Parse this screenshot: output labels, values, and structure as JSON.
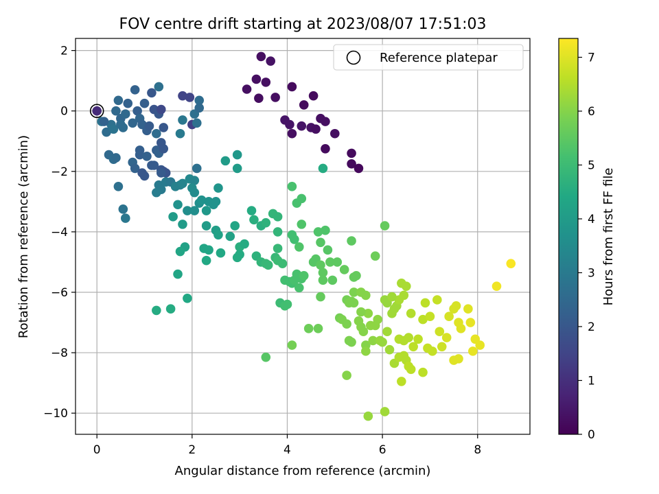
{
  "chart_data": {
    "type": "scatter",
    "title": "FOV centre drift starting at 2023/08/07 17:51:03",
    "xlabel": "Angular distance from reference (arcmin)",
    "ylabel": "Rotation from reference (arcmin)",
    "xlim": [
      -0.45,
      9.1
    ],
    "ylim": [
      -10.7,
      2.4
    ],
    "xticks": [
      0,
      2,
      4,
      6,
      8
    ],
    "yticks": [
      -10,
      -8,
      -6,
      -4,
      -2,
      0,
      2
    ],
    "xtick_labels": [
      "0",
      "2",
      "4",
      "6",
      "8"
    ],
    "ytick_labels": [
      "−10",
      "−8",
      "−6",
      "−4",
      "−2",
      "0",
      "2"
    ],
    "grid": true,
    "legend": {
      "placement": "top-right",
      "entries": [
        "Reference platepar"
      ]
    },
    "reference_point": {
      "x": 0,
      "y": 0
    },
    "colorbar": {
      "label": "Hours from first FF file",
      "colormap": "viridis",
      "range": [
        0,
        7.35
      ],
      "ticks": [
        0,
        1,
        2,
        3,
        4,
        5,
        6,
        7
      ],
      "tick_labels": [
        "0",
        "1",
        "2",
        "3",
        "4",
        "5",
        "6",
        "7"
      ]
    },
    "points": [
      [
        3.45,
        1.8,
        0.3
      ],
      [
        3.65,
        1.65,
        0.35
      ],
      [
        3.35,
        1.05,
        0.3
      ],
      [
        3.55,
        0.95,
        0.3
      ],
      [
        3.15,
        0.72,
        0.3
      ],
      [
        3.4,
        0.42,
        0.25
      ],
      [
        3.75,
        0.45,
        0.3
      ],
      [
        4.1,
        0.8,
        0.2
      ],
      [
        4.55,
        0.5,
        0.2
      ],
      [
        4.35,
        0.2,
        0.2
      ],
      [
        3.95,
        -0.3,
        0.4
      ],
      [
        4.05,
        -0.45,
        0.4
      ],
      [
        4.1,
        -0.75,
        0.3
      ],
      [
        4.3,
        -0.5,
        0.4
      ],
      [
        4.5,
        -0.55,
        0.35
      ],
      [
        4.6,
        -0.6,
        0.3
      ],
      [
        4.7,
        -0.25,
        0.3
      ],
      [
        4.8,
        -0.35,
        0.3
      ],
      [
        5.0,
        -0.75,
        0.3
      ],
      [
        4.8,
        -1.25,
        0.2
      ],
      [
        5.35,
        -1.4,
        0.2
      ],
      [
        5.35,
        -1.75,
        0.2
      ],
      [
        5.5,
        -1.9,
        0.15
      ],
      [
        0.0,
        0.0,
        0.9
      ],
      [
        0.1,
        -0.35,
        2.8
      ],
      [
        0.2,
        -0.7,
        2.6
      ],
      [
        0.3,
        -0.45,
        2.7
      ],
      [
        0.35,
        -0.6,
        2.8
      ],
      [
        0.4,
        0.0,
        2.5
      ],
      [
        0.45,
        0.35,
        2.5
      ],
      [
        0.5,
        -0.25,
        2.4
      ],
      [
        0.55,
        -0.55,
        2.6
      ],
      [
        0.6,
        -0.1,
        2.5
      ],
      [
        0.65,
        0.25,
        2.3
      ],
      [
        0.75,
        -0.4,
        2.4
      ],
      [
        0.8,
        0.7,
        2.3
      ],
      [
        0.85,
        0.0,
        2.2
      ],
      [
        0.9,
        -0.25,
        2.4
      ],
      [
        0.95,
        -0.45,
        2.3
      ],
      [
        1.0,
        0.25,
        2.2
      ],
      [
        1.05,
        -0.65,
        2.2
      ],
      [
        1.1,
        -0.5,
        2.1
      ],
      [
        1.15,
        0.6,
        2.0
      ],
      [
        1.2,
        0.05,
        1.9
      ],
      [
        1.3,
        0.8,
        2.7
      ],
      [
        1.25,
        -0.75,
        2.6
      ],
      [
        1.3,
        -0.1,
        2.0
      ],
      [
        1.35,
        0.05,
        1.6
      ],
      [
        1.4,
        -0.55,
        2.0
      ],
      [
        1.8,
        0.5,
        1.5
      ],
      [
        1.95,
        0.45,
        1.5
      ],
      [
        2.0,
        -0.45,
        1.4
      ],
      [
        2.05,
        -0.1,
        2.7
      ],
      [
        2.15,
        0.35,
        2.6
      ],
      [
        2.15,
        0.1,
        2.5
      ],
      [
        2.1,
        -0.4,
        2.7
      ],
      [
        1.8,
        -0.3,
        2.9
      ],
      [
        1.75,
        -0.75,
        3.0
      ],
      [
        0.25,
        -1.45,
        2.5
      ],
      [
        0.35,
        -1.6,
        2.6
      ],
      [
        0.4,
        -1.55,
        2.5
      ],
      [
        0.45,
        -2.5,
        2.7
      ],
      [
        0.55,
        -3.25,
        2.8
      ],
      [
        0.6,
        -3.55,
        2.9
      ],
      [
        0.75,
        -1.7,
        2.4
      ],
      [
        0.8,
        -1.9,
        2.3
      ],
      [
        0.9,
        -1.3,
        2.2
      ],
      [
        0.9,
        -1.45,
        2.2
      ],
      [
        0.95,
        -2.05,
        2.0
      ],
      [
        1.0,
        -2.15,
        2.0
      ],
      [
        1.05,
        -1.5,
        2.3
      ],
      [
        1.15,
        -1.8,
        2.1
      ],
      [
        1.2,
        -1.8,
        2.1
      ],
      [
        1.25,
        -1.3,
        2.2
      ],
      [
        1.3,
        -1.4,
        2.3
      ],
      [
        1.35,
        -1.95,
        2.0
      ],
      [
        1.4,
        -2.0,
        1.9
      ],
      [
        1.45,
        -2.05,
        1.9
      ],
      [
        1.35,
        -1.05,
        2.0
      ],
      [
        1.4,
        -1.25,
        2.0
      ],
      [
        0.15,
        -0.35,
        2.3
      ],
      [
        1.3,
        -2.45,
        3.0
      ],
      [
        1.35,
        -2.6,
        3.0
      ],
      [
        1.45,
        -2.35,
        3.0
      ],
      [
        1.25,
        -2.7,
        3.1
      ],
      [
        1.55,
        -2.35,
        2.9
      ],
      [
        1.65,
        -2.5,
        3.2
      ],
      [
        1.75,
        -2.45,
        3.2
      ],
      [
        1.8,
        -2.4,
        3.3
      ],
      [
        1.95,
        -2.25,
        3.4
      ],
      [
        2.05,
        -2.3,
        3.3
      ],
      [
        2.1,
        -1.9,
        2.7
      ],
      [
        2.05,
        -2.7,
        3.5
      ],
      [
        2.0,
        -2.55,
        3.5
      ],
      [
        1.7,
        -3.1,
        3.7
      ],
      [
        1.9,
        -3.3,
        3.6
      ],
      [
        2.05,
        -3.3,
        3.6
      ],
      [
        2.15,
        -3.05,
        3.6
      ],
      [
        2.2,
        -2.95,
        3.7
      ],
      [
        2.35,
        -3.0,
        3.7
      ],
      [
        2.45,
        -3.1,
        3.7
      ],
      [
        2.5,
        -3.0,
        3.7
      ],
      [
        2.55,
        -2.55,
        3.8
      ],
      [
        2.3,
        -3.8,
        4.0
      ],
      [
        2.5,
        -3.95,
        4.1
      ],
      [
        2.55,
        -4.1,
        4.2
      ],
      [
        2.8,
        -4.15,
        4.2
      ],
      [
        2.9,
        -3.8,
        4.3
      ],
      [
        2.95,
        -1.45,
        3.9
      ],
      [
        2.95,
        -1.9,
        4.0
      ],
      [
        2.7,
        -1.65,
        4.0
      ],
      [
        1.6,
        -3.5,
        4.0
      ],
      [
        1.8,
        -3.75,
        4.0
      ],
      [
        1.85,
        -4.5,
        4.2
      ],
      [
        1.75,
        -4.65,
        4.3
      ],
      [
        1.7,
        -5.4,
        4.3
      ],
      [
        1.9,
        -6.2,
        4.4
      ],
      [
        1.25,
        -6.6,
        4.5
      ],
      [
        1.55,
        -6.55,
        4.5
      ],
      [
        2.3,
        -4.95,
        4.4
      ],
      [
        2.25,
        -4.55,
        4.3
      ],
      [
        2.35,
        -4.6,
        4.3
      ],
      [
        2.6,
        -4.7,
        4.4
      ],
      [
        2.95,
        -4.85,
        4.5
      ],
      [
        3.0,
        -4.5,
        4.6
      ],
      [
        3.1,
        -4.4,
        4.5
      ],
      [
        3.25,
        -3.3,
        4.5
      ],
      [
        3.3,
        -3.6,
        4.6
      ],
      [
        3.45,
        -3.8,
        4.6
      ],
      [
        3.55,
        -3.7,
        4.7
      ],
      [
        3.7,
        -3.4,
        4.8
      ],
      [
        3.8,
        -3.5,
        4.8
      ],
      [
        3.8,
        -4.0,
        4.8
      ],
      [
        3.8,
        -4.55,
        4.9
      ],
      [
        3.35,
        -4.8,
        4.7
      ],
      [
        3.45,
        -5.0,
        4.8
      ],
      [
        3.55,
        -5.05,
        4.9
      ],
      [
        3.6,
        -5.1,
        4.9
      ],
      [
        3.75,
        -4.85,
        4.9
      ],
      [
        3.8,
        -4.95,
        5.0
      ],
      [
        3.9,
        -5.05,
        5.0
      ],
      [
        3.85,
        -6.35,
        5.0
      ],
      [
        3.95,
        -6.45,
        5.1
      ],
      [
        4.0,
        -6.4,
        5.1
      ],
      [
        3.95,
        -5.6,
        5.1
      ],
      [
        4.05,
        -5.65,
        5.1
      ],
      [
        4.1,
        -5.7,
        5.1
      ],
      [
        4.15,
        -5.6,
        5.2
      ],
      [
        4.2,
        -5.4,
        5.2
      ],
      [
        4.25,
        -5.85,
        5.2
      ],
      [
        4.3,
        -5.55,
        5.2
      ],
      [
        4.35,
        -5.45,
        5.3
      ],
      [
        4.1,
        -4.1,
        5.1
      ],
      [
        4.15,
        -4.25,
        5.1
      ],
      [
        4.2,
        -3.05,
        5.2
      ],
      [
        4.3,
        -2.9,
        5.2
      ],
      [
        4.1,
        -2.5,
        5.2
      ],
      [
        4.3,
        -3.75,
        5.3
      ],
      [
        4.25,
        -4.5,
        5.3
      ],
      [
        4.55,
        -5.0,
        5.4
      ],
      [
        4.6,
        -4.9,
        5.4
      ],
      [
        4.65,
        -4.0,
        5.3
      ],
      [
        4.7,
        -4.35,
        5.4
      ],
      [
        4.75,
        -1.9,
        4.5
      ],
      [
        4.8,
        -3.95,
        5.3
      ],
      [
        4.85,
        -4.6,
        5.4
      ],
      [
        4.7,
        -5.1,
        5.5
      ],
      [
        4.75,
        -5.35,
        5.5
      ],
      [
        4.9,
        -5.0,
        5.5
      ],
      [
        4.95,
        -5.6,
        5.5
      ],
      [
        5.05,
        -5.0,
        5.5
      ],
      [
        4.75,
        -5.6,
        5.5
      ],
      [
        4.7,
        -6.15,
        5.6
      ],
      [
        4.65,
        -7.2,
        5.7
      ],
      [
        4.45,
        -7.2,
        5.7
      ],
      [
        4.1,
        -7.75,
        5.8
      ],
      [
        3.55,
        -8.15,
        5.4
      ],
      [
        5.1,
        -6.85,
        5.8
      ],
      [
        5.15,
        -6.9,
        5.9
      ],
      [
        5.25,
        -6.25,
        5.8
      ],
      [
        5.3,
        -6.35,
        5.9
      ],
      [
        5.35,
        -4.3,
        5.5
      ],
      [
        5.35,
        -6.3,
        5.9
      ],
      [
        5.4,
        -5.5,
        5.6
      ],
      [
        5.45,
        -5.45,
        5.6
      ],
      [
        5.2,
        -5.25,
        5.6
      ],
      [
        5.25,
        -7.05,
        5.9
      ],
      [
        5.3,
        -7.6,
        5.9
      ],
      [
        5.35,
        -7.65,
        5.9
      ],
      [
        5.4,
        -6.0,
        5.9
      ],
      [
        5.5,
        -6.95,
        6.0
      ],
      [
        5.55,
        -6.0,
        6.0
      ],
      [
        5.55,
        -7.15,
        6.0
      ],
      [
        5.6,
        -7.3,
        6.0
      ],
      [
        5.65,
        -7.75,
        6.0
      ],
      [
        5.7,
        -6.7,
        6.1
      ],
      [
        5.75,
        -7.1,
        6.1
      ],
      [
        5.8,
        -7.6,
        6.1
      ],
      [
        5.85,
        -7.1,
        6.1
      ],
      [
        5.65,
        -6.1,
        6.0
      ],
      [
        5.9,
        -6.9,
        6.1
      ],
      [
        5.95,
        -7.6,
        6.2
      ],
      [
        6.0,
        -7.65,
        6.2
      ],
      [
        6.05,
        -6.25,
        6.2
      ],
      [
        6.1,
        -6.35,
        6.2
      ],
      [
        6.05,
        -3.8,
        5.6
      ],
      [
        5.85,
        -4.8,
        5.7
      ],
      [
        5.25,
        -8.75,
        6.0
      ],
      [
        5.65,
        -7.95,
        6.1
      ],
      [
        6.1,
        -7.3,
        6.3
      ],
      [
        6.15,
        -7.9,
        6.3
      ],
      [
        6.2,
        -6.7,
        6.3
      ],
      [
        6.3,
        -6.45,
        6.3
      ],
      [
        6.35,
        -6.25,
        6.4
      ],
      [
        6.4,
        -5.7,
        6.4
      ],
      [
        6.45,
        -6.1,
        6.4
      ],
      [
        6.5,
        -5.8,
        6.4
      ],
      [
        6.25,
        -8.35,
        6.4
      ],
      [
        6.35,
        -8.15,
        6.5
      ],
      [
        6.45,
        -8.1,
        6.5
      ],
      [
        6.5,
        -8.25,
        6.5
      ],
      [
        6.55,
        -8.45,
        6.6
      ],
      [
        6.4,
        -8.95,
        6.6
      ],
      [
        6.6,
        -8.55,
        6.6
      ],
      [
        6.35,
        -7.55,
        6.5
      ],
      [
        6.45,
        -7.6,
        6.5
      ],
      [
        6.55,
        -7.5,
        6.5
      ],
      [
        6.65,
        -7.8,
        6.6
      ],
      [
        6.75,
        -7.55,
        6.6
      ],
      [
        6.85,
        -8.65,
        6.6
      ],
      [
        6.85,
        -6.9,
        6.6
      ],
      [
        6.9,
        -6.35,
        6.6
      ],
      [
        6.95,
        -7.85,
        6.7
      ],
      [
        7.05,
        -7.95,
        6.7
      ],
      [
        7.0,
        -6.8,
        6.7
      ],
      [
        7.15,
        -6.25,
        6.7
      ],
      [
        7.2,
        -7.3,
        6.8
      ],
      [
        7.25,
        -7.8,
        6.8
      ],
      [
        7.35,
        -7.5,
        6.9
      ],
      [
        7.4,
        -6.8,
        6.9
      ],
      [
        7.5,
        -6.55,
        6.9
      ],
      [
        7.55,
        -6.45,
        6.9
      ],
      [
        7.5,
        -8.25,
        7.0
      ],
      [
        7.6,
        -8.2,
        7.0
      ],
      [
        7.6,
        -7.0,
        7.0
      ],
      [
        7.65,
        -7.2,
        7.0
      ],
      [
        7.8,
        -6.55,
        7.0
      ],
      [
        7.85,
        -7.0,
        7.1
      ],
      [
        7.9,
        -7.95,
        7.1
      ],
      [
        7.95,
        -7.55,
        7.1
      ],
      [
        8.05,
        -7.75,
        7.1
      ],
      [
        8.4,
        -5.8,
        7.2
      ],
      [
        8.7,
        -5.05,
        7.3
      ],
      [
        5.7,
        -10.1,
        6.2
      ],
      [
        6.05,
        -9.95,
        6.3
      ],
      [
        6.6,
        -6.7,
        6.5
      ],
      [
        6.2,
        -6.15,
        6.3
      ],
      [
        5.55,
        -6.65,
        6.0
      ],
      [
        5.4,
        -6.35,
        5.9
      ],
      [
        6.25,
        -6.55,
        6.3
      ],
      [
        3.0,
        -4.75,
        4.5
      ],
      [
        2.3,
        -3.3,
        3.9
      ],
      [
        1.35,
        -2.05,
        2.1
      ],
      [
        0.5,
        -0.45,
        2.6
      ]
    ]
  }
}
